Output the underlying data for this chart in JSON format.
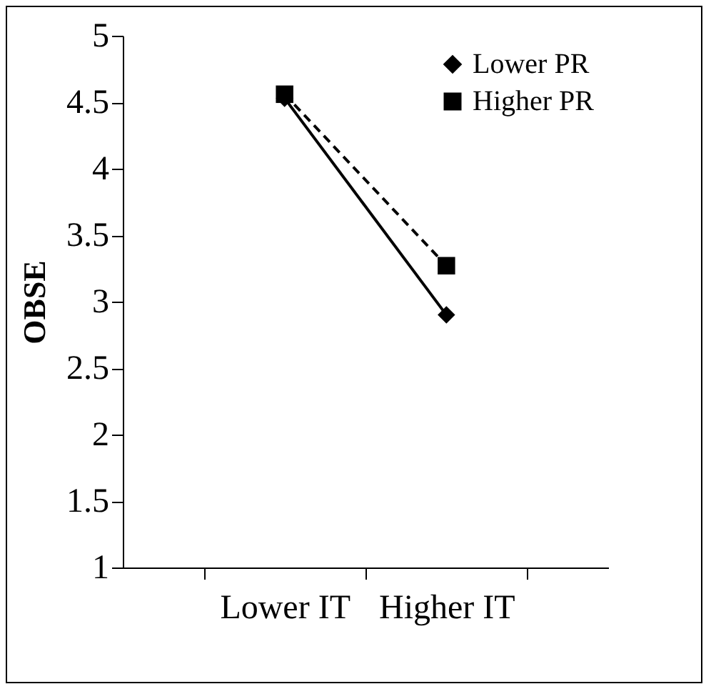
{
  "chart_data": {
    "type": "line",
    "ylabel": "OBSE",
    "categories": [
      "Lower IT",
      "Higher IT"
    ],
    "series": [
      {
        "name": "Lower PR",
        "color": "#000000",
        "values": [
          4.53,
          2.9
        ],
        "marker": "diamond",
        "line_style": "solid"
      },
      {
        "name": "Higher PR",
        "color": "#000000",
        "values": [
          4.56,
          3.27
        ],
        "marker": "square",
        "line_style": "dashed"
      }
    ],
    "ylim": [
      1,
      5
    ],
    "yticks": [
      1,
      1.5,
      2,
      2.5,
      3,
      3.5,
      4,
      4.5,
      5
    ],
    "grid": false,
    "legend": "top right"
  }
}
